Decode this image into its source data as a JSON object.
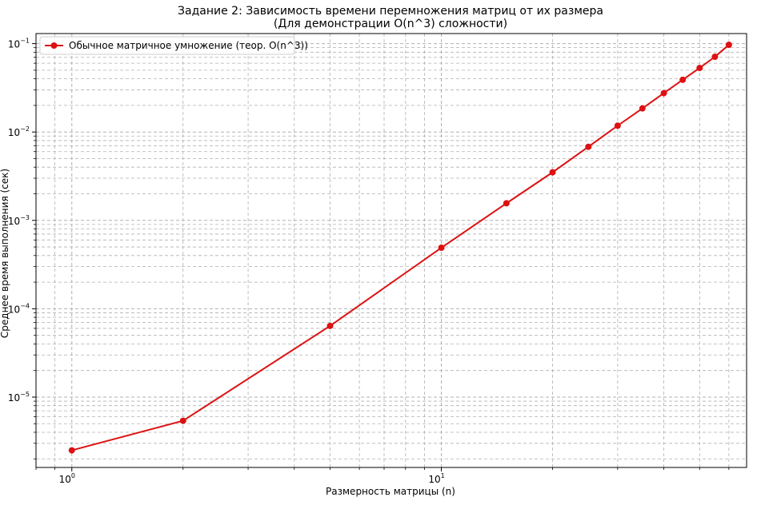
{
  "chart_data": {
    "type": "line",
    "title": "Задание 2: Зависимость времени перемножения матриц от их размера",
    "subtitle": "(Для демонстрации O(n^3) сложности)",
    "xlabel": "Размерность матрицы (n)",
    "ylabel": "Среднее время выполнения (сек)",
    "x_scale": "log",
    "y_scale": "log",
    "xlim": [
      0.8,
      67
    ],
    "ylim": [
      1.6e-06,
      0.13
    ],
    "grid": true,
    "grid_minor": true,
    "legend_position": "top-left",
    "x_ticks": [
      {
        "value": 1,
        "base": "10",
        "exp": "0"
      },
      {
        "value": 10,
        "base": "10",
        "exp": "1"
      }
    ],
    "y_ticks": [
      {
        "value": 1e-05,
        "base": "10",
        "exp": "−5"
      },
      {
        "value": 0.0001,
        "base": "10",
        "exp": "−4"
      },
      {
        "value": 0.001,
        "base": "10",
        "exp": "−3"
      },
      {
        "value": 0.01,
        "base": "10",
        "exp": "−2"
      },
      {
        "value": 0.1,
        "base": "10",
        "exp": "−1"
      }
    ],
    "series": [
      {
        "name": "Обычное матричное умножение (теор. O(n^3))",
        "color": "#dd1111",
        "marker": "circle",
        "x": [
          1,
          2,
          5,
          10,
          15,
          20,
          25,
          30,
          35,
          40,
          45,
          50,
          55,
          60
        ],
        "y": [
          2.5e-06,
          5.4e-06,
          6.4e-05,
          0.00049,
          0.00156,
          0.0035,
          0.0068,
          0.0118,
          0.0185,
          0.0275,
          0.039,
          0.053,
          0.071,
          0.097
        ]
      }
    ]
  }
}
